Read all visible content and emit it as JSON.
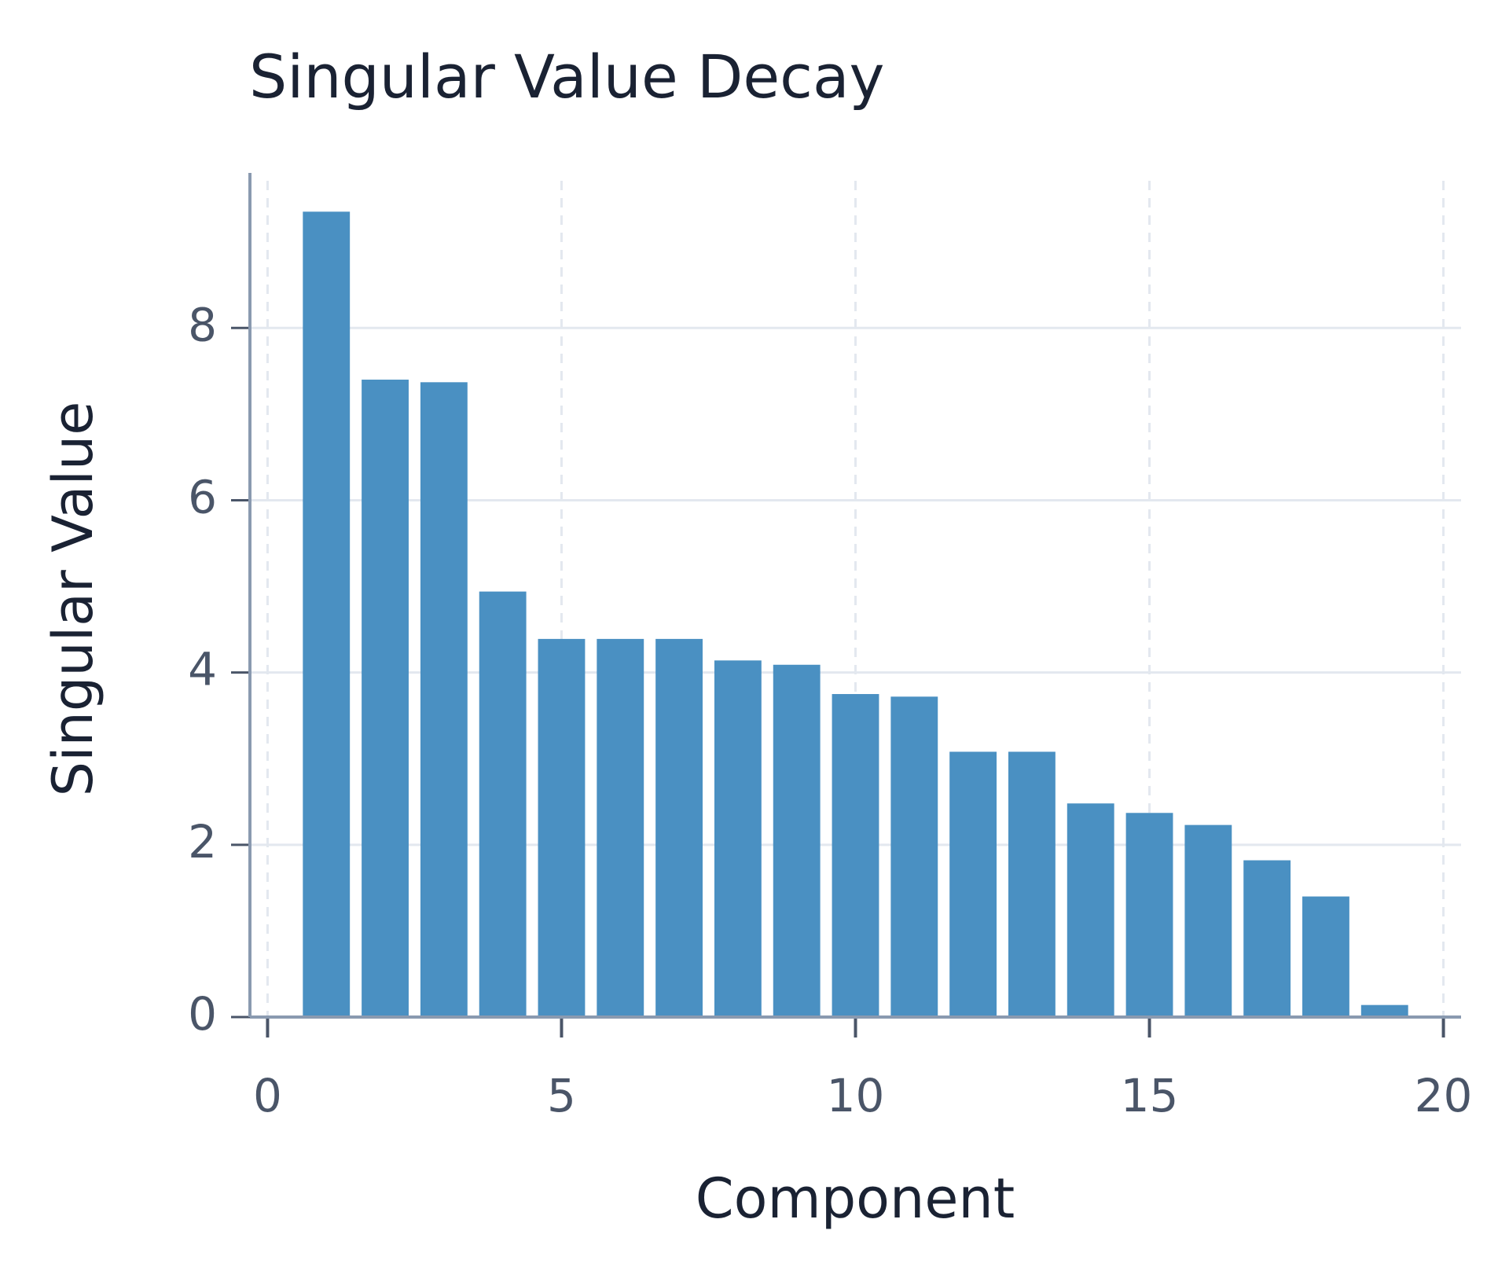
{
  "chart_data": {
    "type": "bar",
    "title": "Singular Value Decay",
    "x_label": "Component",
    "y_label": "Singular Value",
    "x": [
      1,
      2,
      3,
      4,
      5,
      6,
      7,
      8,
      9,
      10,
      11,
      12,
      13,
      14,
      15,
      16,
      17,
      18,
      19
    ],
    "values": [
      9.35,
      7.4,
      7.37,
      4.94,
      4.39,
      4.39,
      4.39,
      4.14,
      4.09,
      3.75,
      3.72,
      3.08,
      3.08,
      2.48,
      2.37,
      2.23,
      1.82,
      1.4,
      0.14
    ],
    "color": "#4a90c2",
    "bar_width": 0.8,
    "xlim": [
      -0.3,
      20.3
    ],
    "xticks": [
      0,
      5,
      10,
      15,
      20
    ],
    "ylim": [
      0,
      9.8
    ],
    "yticks": [
      0,
      2,
      4,
      6,
      8
    ],
    "grid": true
  }
}
